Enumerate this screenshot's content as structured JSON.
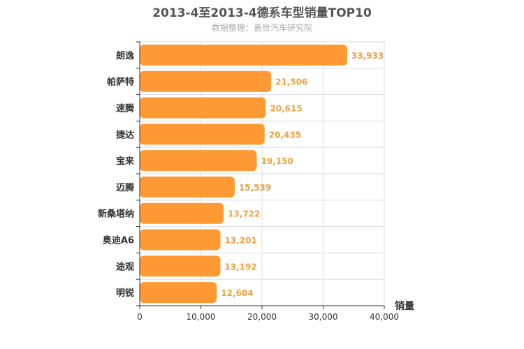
{
  "chart_data": {
    "type": "bar",
    "orientation": "horizontal",
    "title": "2013-4至2013-4德系车型销量TOP10",
    "subtitle": "数据整理：盖世汽车研究院",
    "categories": [
      "朗逸",
      "帕萨特",
      "速腾",
      "捷达",
      "宝来",
      "迈腾",
      "新桑塔纳",
      "奥迪A6",
      "途观",
      "明锐"
    ],
    "values": [
      33933,
      21506,
      20615,
      20435,
      19150,
      15539,
      13722,
      13201,
      13192,
      12604
    ],
    "value_labels": [
      "33,933",
      "21,506",
      "20,615",
      "20,435",
      "19,150",
      "15,539",
      "13,722",
      "13,201",
      "13,192",
      "12,604"
    ],
    "xlabel": "销量",
    "xlim": [
      0,
      40000
    ],
    "xticks": [
      0,
      10000,
      20000,
      30000,
      40000
    ],
    "xtick_labels": [
      "0",
      "10,000",
      "20,000",
      "30,000",
      "40,000"
    ],
    "grid": true,
    "bar_color": "#ff9933",
    "label_color": "#f0a040"
  }
}
